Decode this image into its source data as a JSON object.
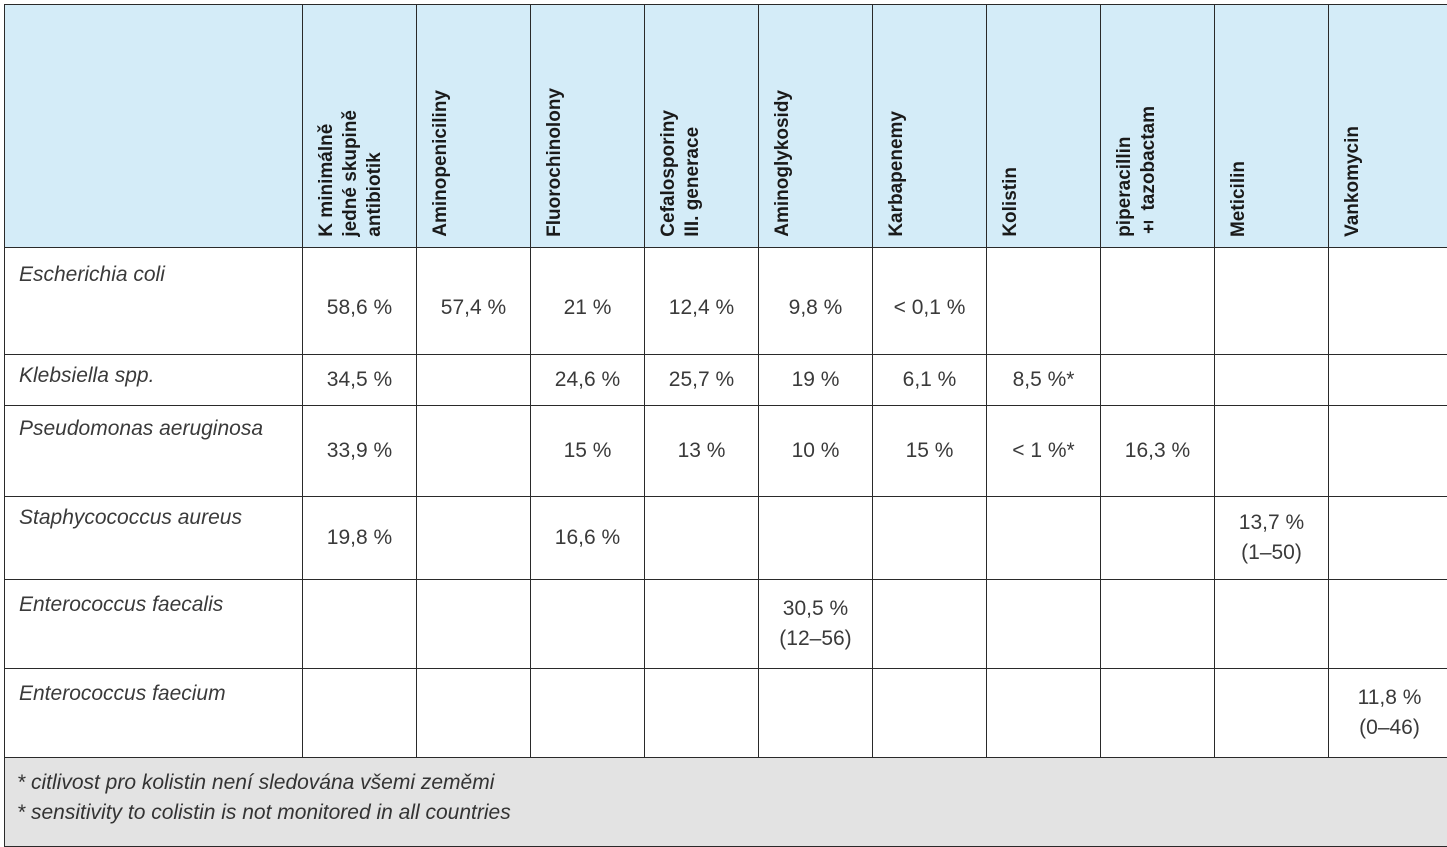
{
  "headers": [
    "K minimálně\njedné skupině\nantibiotik",
    "Aminopeniciliny",
    "Fluorochinolony",
    "Cefalosporiny\nIII. generace",
    "Aminoglykosidy",
    "Karbapenemy",
    "Kolistin",
    "piperacillin\n± tazobactam",
    "Meticilin",
    "Vankomycin"
  ],
  "rows": [
    {
      "organism": "Escherichia coli",
      "values": [
        "58,6 %",
        "57,4 %",
        "21 %",
        "12,4 %",
        "9,8 %",
        "< 0,1 %",
        "",
        "",
        "",
        ""
      ]
    },
    {
      "organism": "Klebsiella spp.",
      "values": [
        "34,5 %",
        "",
        "24,6 %",
        "25,7 %",
        "19 %",
        "6,1 %",
        "8,5 %*",
        "",
        "",
        ""
      ]
    },
    {
      "organism": "Pseudomonas aeruginosa",
      "values": [
        "33,9 %",
        "",
        "15 %",
        "13 %",
        "10 %",
        "15 %",
        "< 1 %*",
        "16,3 %",
        "",
        ""
      ]
    },
    {
      "organism": "Staphycococcus aureus",
      "values": [
        "19,8 %",
        "",
        "16,6 %",
        "",
        "",
        "",
        "",
        "",
        "13,7 %\n(1–50)",
        ""
      ]
    },
    {
      "organism": "Enterococcus faecalis",
      "values": [
        "",
        "",
        "",
        "",
        "30,5 %\n(12–56)",
        "",
        "",
        "",
        "",
        ""
      ]
    },
    {
      "organism": "Enterococcus faecium",
      "values": [
        "",
        "",
        "",
        "",
        "",
        "",
        "",
        "",
        "",
        "11,8 %\n(0–46)"
      ]
    }
  ],
  "footnotes": {
    "cz": "* citlivost pro kolistin není sledována všemi zeměmi",
    "en": "* sensitivity to colistin is not monitored in all countries"
  }
}
